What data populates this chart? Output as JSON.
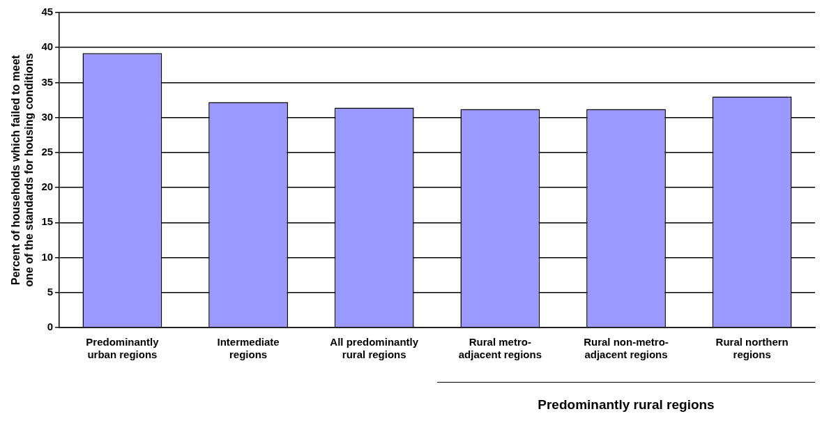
{
  "chart_data": {
    "type": "bar",
    "ylabel": "Percent of households which failed to meet one of the standards for housing conditions",
    "categories": [
      "Predominantly urban regions",
      "Intermediate regions",
      "All predominantly rural regions",
      "Rural metro-adjacent regions",
      "Rural non-metro-adjacent regions",
      "Rural northern regions"
    ],
    "values": [
      39.2,
      32.2,
      31.4,
      31.2,
      31.2,
      33.0
    ],
    "color": "#9999ff",
    "ylim": [
      0,
      45
    ],
    "yticks": [
      0,
      5,
      10,
      15,
      20,
      25,
      30,
      35,
      40,
      45
    ],
    "grid": "y",
    "annotations": [
      "Predominantly rural regions"
    ]
  }
}
